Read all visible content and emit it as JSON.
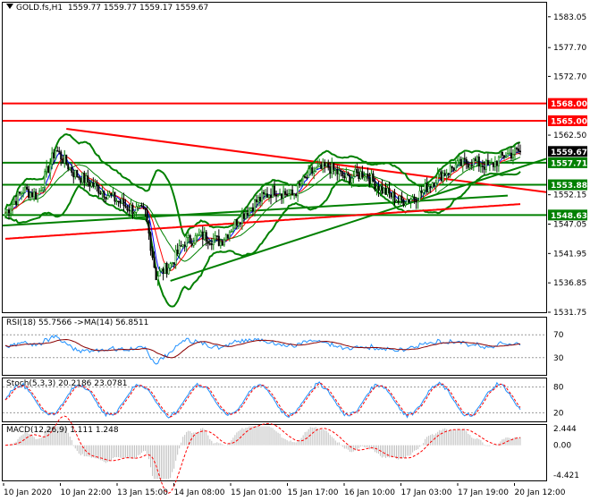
{
  "header": {
    "symbol": "GOLD.fs,H1",
    "ohlc": "1559.77 1559.77 1559.17 1559.67"
  },
  "main_axis": {
    "min": 1531.75,
    "max": 1585.5,
    "ticks": [
      "1583.05",
      "1577.70",
      "1572.70",
      "1562.50",
      "1552.15",
      "1547.05",
      "1541.95",
      "1536.85",
      "1531.75"
    ]
  },
  "levels": [
    {
      "value": 1568.0,
      "label": "1568.00",
      "color": "#ff0000"
    },
    {
      "value": 1565.0,
      "label": "1565.00",
      "color": "#ff0000"
    },
    {
      "value": 1557.71,
      "label": "1557.71",
      "color": "#008000"
    },
    {
      "value": 1553.88,
      "label": "1553.88",
      "color": "#008000"
    },
    {
      "value": 1548.63,
      "label": "1548.63",
      "color": "#008000"
    }
  ],
  "current_price": {
    "value": 1559.67,
    "label": "1559.67"
  },
  "rsi": {
    "label": "RSI(18) 55.7566   ->MA(14) 56.8511",
    "ticks": [
      "70",
      "30"
    ],
    "min": 0,
    "max": 100
  },
  "stoch": {
    "label": "Stoch(5,3,3) 20.2186 23.0781",
    "ticks": [
      "80",
      "20"
    ],
    "min": 0,
    "max": 100
  },
  "macd": {
    "label": "MACD(12,26,9) 1.111 1.248",
    "ticks": [
      "2.444",
      "0.00",
      "-4.421"
    ],
    "min": -5.2,
    "max": 3.0
  },
  "time_axis": [
    "10 Jan 2020",
    "10 Jan 22:00",
    "13 Jan 15:00",
    "14 Jan 08:00",
    "15 Jan 01:00",
    "15 Jan 17:00",
    "16 Jan 10:00",
    "17 Jan 03:00",
    "17 Jan 19:00",
    "20 Jan 12:00"
  ],
  "colors": {
    "bull": "#008000",
    "bear": "#000000",
    "bands": "#008000",
    "trend_red": "#ff0000",
    "trend_green": "#008000",
    "rsi_line": "#1e90ff",
    "rsi_ma": "#8b0000",
    "stoch_main": "#1e90ff",
    "stoch_signal": "#ff0000",
    "macd_hist": "#c0c0c0",
    "macd_signal": "#ff0000"
  },
  "chart_data": {
    "type": "candlestick",
    "title": "GOLD.fs,H1",
    "ylim": [
      1531.75,
      1585.5
    ],
    "anchors": [
      [
        0,
        1549
      ],
      [
        10,
        1553
      ],
      [
        18,
        1552
      ],
      [
        28,
        1560
      ],
      [
        38,
        1556
      ],
      [
        48,
        1554
      ],
      [
        58,
        1552
      ],
      [
        68,
        1550
      ],
      [
        78,
        1549
      ],
      [
        84,
        1538
      ],
      [
        92,
        1540
      ],
      [
        100,
        1544
      ],
      [
        110,
        1545
      ],
      [
        120,
        1544
      ],
      [
        130,
        1548
      ],
      [
        140,
        1551
      ],
      [
        150,
        1553
      ],
      [
        160,
        1552
      ],
      [
        170,
        1556
      ],
      [
        180,
        1557
      ],
      [
        190,
        1555
      ],
      [
        200,
        1556
      ],
      [
        210,
        1553
      ],
      [
        220,
        1551
      ],
      [
        230,
        1552
      ],
      [
        240,
        1555
      ],
      [
        250,
        1557
      ],
      [
        260,
        1558
      ],
      [
        270,
        1557
      ],
      [
        278,
        1559
      ],
      [
        286,
        1559.67
      ]
    ]
  }
}
